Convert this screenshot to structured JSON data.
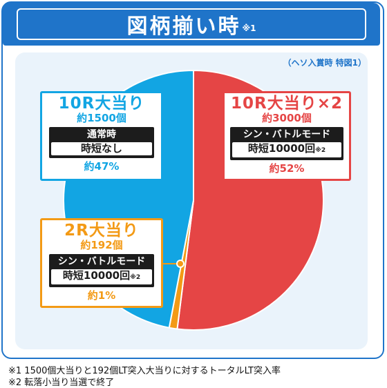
{
  "title": {
    "main": "図柄揃い時",
    "note": "※1"
  },
  "subnote": "（ヘソ入賞時 特図1）",
  "colors": {
    "frame": "#1f74c9",
    "blue": "#12a5e3",
    "red": "#e54545",
    "orange": "#f39a15",
    "panel": "#eaf3fb",
    "dark": "#1c1c1c"
  },
  "chart_data": {
    "type": "pie",
    "title": "",
    "start": "top, clockwise",
    "slices": [
      {
        "name": "10R大当り×2",
        "value": 52,
        "color": "#e54545",
        "label": "10R大当り×2",
        "sub": "約3000個",
        "mode": "シン・バトルモード",
        "jitan": "時短10000回",
        "jitan_note": "※2",
        "pct": "約52%"
      },
      {
        "name": "2R大当り",
        "value": 1,
        "color": "#f39a15",
        "label": "2R大当り",
        "sub": "約192個",
        "mode": "シン・バトルモード",
        "jitan": "時短10000回",
        "jitan_note": "※2",
        "pct": "約1%"
      },
      {
        "name": "10R大当り",
        "value": 47,
        "color": "#12a5e3",
        "label": "10R大当り",
        "sub": "約1500個",
        "mode": "通常時",
        "jitan": "時短なし",
        "jitan_note": "",
        "pct": "約47%"
      }
    ]
  },
  "footnotes": [
    "※1  1500個大当りと192個LT突入大当りに対するトータルLT突入率",
    "※2  転落小当り当選で終了"
  ]
}
